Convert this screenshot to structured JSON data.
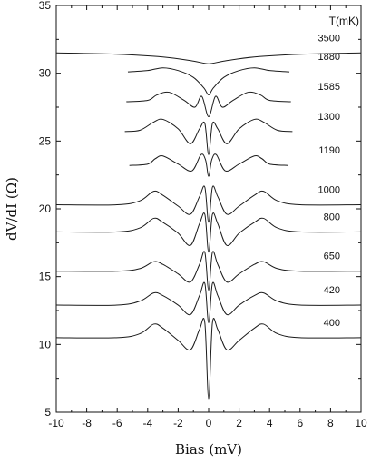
{
  "chart_data": {
    "type": "line",
    "xlabel": "Bias (mV)",
    "ylabel": "dV/dI (Ω)",
    "xlim": [
      -10,
      10
    ],
    "ylim": [
      5,
      35
    ],
    "x_ticks": [
      -10,
      -8,
      -6,
      -4,
      -2,
      0,
      2,
      4,
      6,
      8,
      10
    ],
    "y_ticks": [
      5,
      10,
      15,
      20,
      25,
      30,
      35
    ],
    "legend_title": "T(mK)",
    "grid": false,
    "series": [
      {
        "name": "3500",
        "x": [
          -10,
          -6,
          -3,
          -1,
          0,
          1,
          3,
          6,
          10
        ],
        "y": [
          31.5,
          31.4,
          31.2,
          30.9,
          30.7,
          30.9,
          31.2,
          31.4,
          31.5
        ]
      },
      {
        "name": "1880",
        "x": [
          -5.3,
          -4,
          -3,
          -2,
          -1,
          -0.3,
          0,
          0.3,
          1,
          2,
          3,
          4,
          5.3
        ],
        "y": [
          30.1,
          30.2,
          30.4,
          30.2,
          29.7,
          28.9,
          28.4,
          28.9,
          29.7,
          30.2,
          30.4,
          30.2,
          30.1
        ]
      },
      {
        "name": "1585",
        "x": [
          -5.4,
          -4,
          -3.4,
          -2.6,
          -1.6,
          -0.9,
          -0.45,
          0,
          0.45,
          0.9,
          1.6,
          2.6,
          3.4,
          4,
          5.4
        ],
        "y": [
          27.9,
          28.0,
          28.4,
          28.6,
          28.0,
          27.5,
          28.3,
          26.8,
          28.3,
          27.5,
          28.0,
          28.6,
          28.4,
          28.0,
          27.9
        ]
      },
      {
        "name": "1300",
        "x": [
          -5.5,
          -4.5,
          -3.6,
          -3,
          -2,
          -1.2,
          -0.6,
          -0.25,
          0,
          0.25,
          0.6,
          1.2,
          2,
          3,
          3.6,
          4.5,
          5.5
        ],
        "y": [
          25.7,
          25.8,
          26.4,
          26.6,
          25.9,
          24.8,
          25.9,
          26.3,
          24.0,
          26.3,
          25.9,
          24.8,
          25.9,
          26.6,
          26.4,
          25.8,
          25.7
        ]
      },
      {
        "name": "1190",
        "x": [
          -5.2,
          -4,
          -3.5,
          -3,
          -2,
          -1.1,
          -0.5,
          -0.2,
          0,
          0.2,
          0.5,
          1.1,
          2,
          3,
          3.5,
          4,
          5.2
        ],
        "y": [
          23.2,
          23.3,
          23.7,
          23.9,
          23.3,
          22.8,
          24.0,
          23.6,
          22.4,
          23.6,
          24.0,
          22.8,
          23.3,
          23.9,
          23.7,
          23.3,
          23.2
        ]
      },
      {
        "name": "1000",
        "x": [
          -10,
          -6,
          -4.5,
          -3.6,
          -3,
          -2,
          -1.2,
          -0.6,
          -0.25,
          0,
          0.25,
          0.6,
          1.2,
          2,
          3,
          3.6,
          4.5,
          6,
          10
        ],
        "y": [
          20.3,
          20.3,
          20.6,
          21.3,
          21.0,
          20.2,
          19.6,
          20.9,
          21.6,
          19.0,
          21.6,
          20.9,
          19.6,
          20.2,
          21.0,
          21.3,
          20.6,
          20.3,
          20.3
        ]
      },
      {
        "name": "800",
        "x": [
          -10,
          -6,
          -4.5,
          -3.6,
          -3,
          -2,
          -1.2,
          -0.6,
          -0.25,
          0,
          0.25,
          0.6,
          1.2,
          2,
          3,
          3.6,
          4.5,
          6,
          10
        ],
        "y": [
          18.3,
          18.3,
          18.6,
          19.3,
          19.0,
          18.2,
          17.3,
          18.9,
          19.6,
          16.8,
          19.6,
          18.9,
          17.3,
          18.2,
          19.0,
          19.3,
          18.6,
          18.3,
          18.3
        ]
      },
      {
        "name": "650",
        "x": [
          -10,
          -6,
          -4.5,
          -3.6,
          -3,
          -2,
          -1.2,
          -0.6,
          -0.25,
          0,
          0.25,
          0.6,
          1.2,
          2,
          3,
          3.6,
          4.5,
          6,
          10
        ],
        "y": [
          15.4,
          15.4,
          15.6,
          16.1,
          15.9,
          15.2,
          14.6,
          15.9,
          16.8,
          14.0,
          16.8,
          15.9,
          14.6,
          15.2,
          15.9,
          16.1,
          15.6,
          15.4,
          15.4
        ]
      },
      {
        "name": "420",
        "x": [
          -10,
          -6,
          -4.5,
          -3.6,
          -3,
          -2,
          -1.2,
          -0.6,
          -0.25,
          0,
          0.25,
          0.6,
          1.2,
          2,
          3,
          3.6,
          4.5,
          6,
          10
        ],
        "y": [
          12.9,
          12.9,
          13.2,
          13.8,
          13.6,
          12.9,
          12.2,
          13.6,
          14.5,
          11.6,
          14.5,
          13.6,
          12.2,
          12.9,
          13.6,
          13.8,
          13.2,
          12.9,
          12.9
        ]
      },
      {
        "name": "400",
        "x": [
          -10,
          -6,
          -4.5,
          -3.6,
          -3,
          -2,
          -1.2,
          -0.6,
          -0.25,
          0,
          0.25,
          0.6,
          1.2,
          2,
          3,
          3.6,
          4.5,
          6,
          10
        ],
        "y": [
          10.5,
          10.5,
          10.8,
          11.5,
          11.2,
          10.3,
          9.6,
          11.1,
          11.6,
          6.0,
          11.6,
          11.1,
          9.6,
          10.3,
          11.2,
          11.5,
          10.8,
          10.5,
          10.5
        ]
      }
    ]
  }
}
